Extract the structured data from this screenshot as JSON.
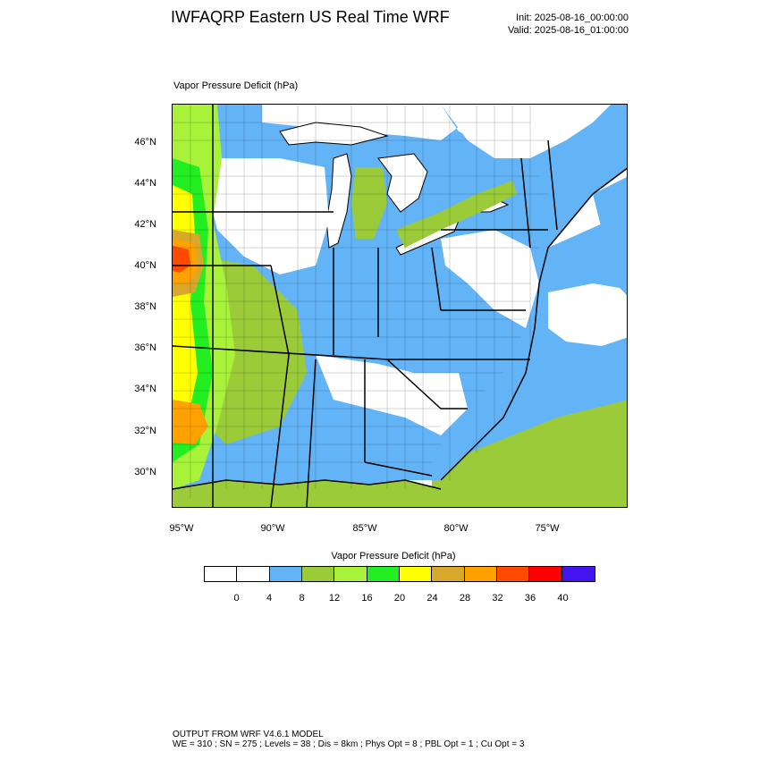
{
  "header": {
    "title": "IWFAQRP Eastern US Real Time WRF",
    "init": "Init: 2025-08-16_00:00:00",
    "valid": "Valid: 2025-08-16_01:00:00"
  },
  "map": {
    "field_label": "Vapor Pressure Deficit   (hPa)",
    "lat_labels": [
      "46°N",
      "44°N",
      "42°N",
      "40°N",
      "38°N",
      "36°N",
      "34°N",
      "32°N",
      "30°N"
    ],
    "lon_labels": [
      "95°W",
      "90°W",
      "85°W",
      "80°W",
      "75°W"
    ],
    "colors": {
      "water_low": "#63b4f6",
      "moderate": "#9ccb3a",
      "light_green": "#a8f23a",
      "green": "#22ee22",
      "yellow": "#ffff00",
      "gold": "#d8a82a",
      "orange": "#ffa200",
      "red_orange": "#ff4a00",
      "red": "#ff0000",
      "boundary": "#000000"
    }
  },
  "colorbar": {
    "title": "Vapor Pressure Deficit   (hPa)",
    "colors": [
      "#ffffff",
      "#ffffff",
      "#63b4f6",
      "#9ccb3a",
      "#a8f23a",
      "#22ee22",
      "#ffff00",
      "#d8a82a",
      "#ffa200",
      "#ff4a00",
      "#ff0000",
      "#4414ee"
    ],
    "ticks": [
      "0",
      "4",
      "8",
      "12",
      "16",
      "20",
      "24",
      "28",
      "32",
      "36",
      "40"
    ]
  },
  "footer": {
    "line1": "OUTPUT FROM WRF V4.6.1 MODEL",
    "line2": "WE = 310 ; SN = 275 ; Levels = 38 ; Dis = 8km ; Phys Opt = 8 ; PBL Opt = 1 ; Cu Opt = 3"
  }
}
